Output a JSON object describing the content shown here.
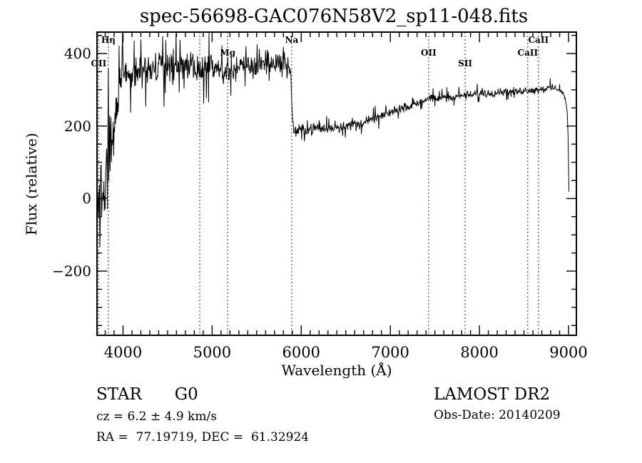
{
  "title": "spec-56698-GAC076N58V2_sp11-048.fits",
  "chart_data": {
    "type": "line",
    "title": "spec-56698-GAC076N58V2_sp11-048.fits",
    "xlabel": "Wavelength (Å)",
    "ylabel": "Flux (relative)",
    "xlim": [
      3708,
      9088
    ],
    "ylim": [
      -377,
      459
    ],
    "x_major_ticks": [
      4000,
      5000,
      6000,
      7000,
      8000,
      9000
    ],
    "x_minor_step": 100,
    "y_major_ticks": [
      -200,
      0,
      200,
      400
    ],
    "y_minor_step": 50,
    "grid": false,
    "legend": "none",
    "line_color": "#000000",
    "marker_line_color": "#7a3b3b",
    "line_markers": [
      {
        "label": "OII",
        "wavelength": 3727,
        "label_row": 3
      },
      {
        "label": "Hη",
        "wavelength": 3835,
        "label_row": 1
      },
      {
        "label": "",
        "wavelength": 4861,
        "label_row": 0
      },
      {
        "label": "Mg",
        "wavelength": 5175,
        "label_row": 2
      },
      {
        "label": "Na",
        "wavelength": 5893,
        "label_row": 1
      },
      {
        "label": "OII",
        "wavelength": 7430,
        "label_row": 2
      },
      {
        "label": "SII",
        "wavelength": 7840,
        "label_row": 3
      },
      {
        "label": "CaII",
        "wavelength": 8542,
        "label_row": 2
      },
      {
        "label": "CaII",
        "wavelength": 8662,
        "label_row": 1
      }
    ],
    "spectrum_envelope": {
      "columns": [
        "wavelength_A",
        "mean_flux",
        "noise_sigma"
      ],
      "points": [
        [
          3710,
          -80,
          170
        ],
        [
          3725,
          -50,
          165
        ],
        [
          3740,
          -20,
          160
        ],
        [
          3760,
          10,
          150
        ],
        [
          3780,
          40,
          140
        ],
        [
          3800,
          70,
          125
        ],
        [
          3815,
          95,
          110
        ],
        [
          3830,
          115,
          95
        ],
        [
          3845,
          135,
          85
        ],
        [
          3860,
          155,
          80
        ],
        [
          3880,
          180,
          72
        ],
        [
          3900,
          205,
          66
        ],
        [
          3915,
          235,
          60
        ],
        [
          3930,
          270,
          55
        ],
        [
          3945,
          305,
          50
        ],
        [
          3960,
          330,
          46
        ],
        [
          3980,
          342,
          44
        ],
        [
          4000,
          350,
          42
        ],
        [
          4040,
          346,
          40
        ],
        [
          4080,
          350,
          40
        ],
        [
          4120,
          348,
          38
        ],
        [
          4160,
          352,
          37
        ],
        [
          4200,
          350,
          36
        ],
        [
          4250,
          354,
          36
        ],
        [
          4300,
          356,
          35
        ],
        [
          4350,
          358,
          35
        ],
        [
          4400,
          360,
          34
        ],
        [
          4450,
          362,
          35
        ],
        [
          4500,
          368,
          36
        ],
        [
          4550,
          366,
          34
        ],
        [
          4600,
          370,
          32
        ],
        [
          4650,
          368,
          32
        ],
        [
          4700,
          366,
          31
        ],
        [
          4750,
          363,
          30
        ],
        [
          4800,
          360,
          30
        ],
        [
          4850,
          358,
          30
        ],
        [
          4900,
          356,
          29
        ],
        [
          4950,
          358,
          29
        ],
        [
          5000,
          360,
          28
        ],
        [
          5050,
          358,
          28
        ],
        [
          5100,
          356,
          28
        ],
        [
          5150,
          353,
          28
        ],
        [
          5200,
          356,
          28
        ],
        [
          5250,
          360,
          27
        ],
        [
          5300,
          362,
          27
        ],
        [
          5350,
          364,
          26
        ],
        [
          5400,
          367,
          26
        ],
        [
          5450,
          369,
          25
        ],
        [
          5500,
          370,
          25
        ],
        [
          5550,
          371,
          25
        ],
        [
          5600,
          372,
          24
        ],
        [
          5650,
          373,
          24
        ],
        [
          5700,
          375,
          23
        ],
        [
          5750,
          376,
          23
        ],
        [
          5800,
          378,
          22
        ],
        [
          5850,
          374,
          21
        ],
        [
          5875,
          362,
          18
        ],
        [
          5890,
          300,
          16
        ],
        [
          5900,
          230,
          15
        ],
        [
          5915,
          188,
          14
        ],
        [
          5940,
          185,
          13
        ],
        [
          5980,
          189,
          13
        ],
        [
          6050,
          191,
          13
        ],
        [
          6150,
          192,
          13
        ],
        [
          6250,
          194,
          12
        ],
        [
          6350,
          196,
          12
        ],
        [
          6450,
          198,
          12
        ],
        [
          6550,
          202,
          12
        ],
        [
          6650,
          208,
          11
        ],
        [
          6750,
          215,
          11
        ],
        [
          6850,
          222,
          11
        ],
        [
          6950,
          232,
          10
        ],
        [
          7050,
          243,
          10
        ],
        [
          7150,
          252,
          10
        ],
        [
          7250,
          260,
          10
        ],
        [
          7350,
          268,
          10
        ],
        [
          7450,
          274,
          10
        ],
        [
          7550,
          277,
          9
        ],
        [
          7650,
          280,
          9
        ],
        [
          7750,
          282,
          9
        ],
        [
          7850,
          285,
          9
        ],
        [
          7950,
          287,
          9
        ],
        [
          8050,
          290,
          9
        ],
        [
          8150,
          292,
          9
        ],
        [
          8250,
          294,
          9
        ],
        [
          8350,
          296,
          8
        ],
        [
          8450,
          297,
          8
        ],
        [
          8550,
          298,
          8
        ],
        [
          8650,
          300,
          8
        ],
        [
          8750,
          303,
          8
        ],
        [
          8820,
          306,
          8
        ],
        [
          8870,
          304,
          7
        ],
        [
          8910,
          299,
          6
        ],
        [
          8945,
          288,
          5
        ],
        [
          8970,
          268,
          4
        ],
        [
          8985,
          238,
          3
        ],
        [
          8995,
          170,
          2
        ],
        [
          9002,
          60,
          1
        ],
        [
          9006,
          5,
          1
        ],
        [
          9008,
          0,
          0
        ]
      ]
    }
  },
  "annotations": {
    "classification": "STAR",
    "subclass": "G0",
    "survey": "LAMOST DR2",
    "cz_line": "cz = 6.2 ± 4.9 km/s",
    "obs_date_line": "Obs-Date: 20140209",
    "coords_line": "RA =  77.19719, DEC =  61.32924"
  }
}
